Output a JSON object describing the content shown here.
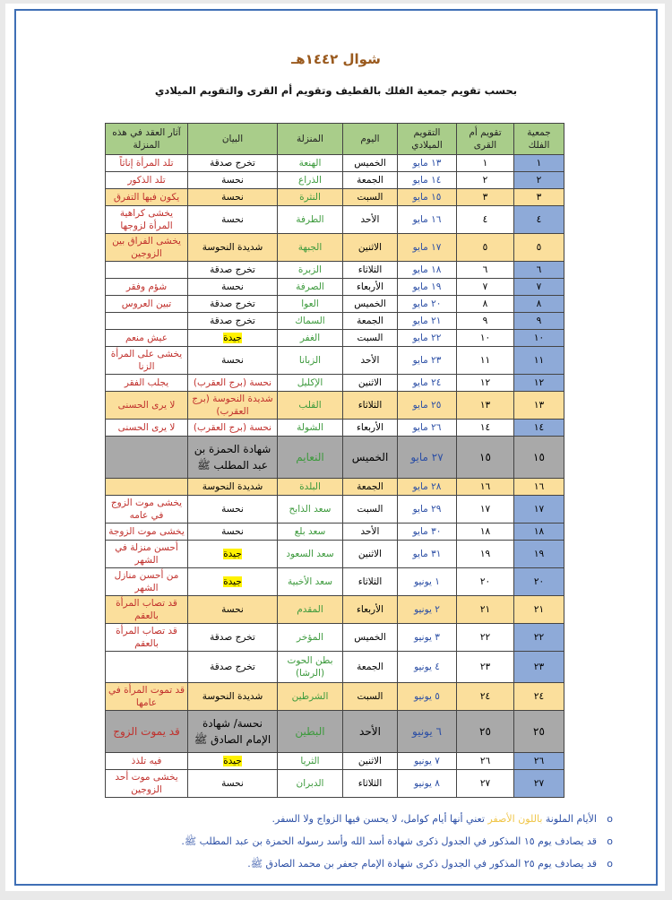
{
  "title": "شوال ١٤٤٢هـ",
  "subtitle": "بحسب تقويم جمعية الفلك بالقطيف وتقويم أم القرى والتقويم الميلادي",
  "headers": {
    "falak": "جمعية الفلك",
    "umm": "تقويم أم القرى",
    "date": "التقويم الميلادي",
    "day": "اليوم",
    "manzila": "المنزلة",
    "bayan": "البيان",
    "effect": "آثار العقد في هذه المنزلة"
  },
  "colors": {
    "header": "#a9cd8a",
    "falak_blue": "#8eaad8",
    "yellow_row": "#fbdf9c",
    "gray_row": "#a9a9a9",
    "effect_text": "#c0302c",
    "manzila_text": "#3d9a3d",
    "date_text": "#2c4fa5"
  },
  "rows": [
    {
      "falak": "١",
      "umm": "١",
      "date": "١٣ مايو",
      "day": "الخميس",
      "manzila": "الهنعة",
      "bayan": "تخرج صدقة",
      "effect": "تلد المرأة إناثاً",
      "bg": "white"
    },
    {
      "falak": "٢",
      "umm": "٢",
      "date": "١٤ مايو",
      "day": "الجمعة",
      "manzila": "الذراع",
      "bayan": "نحسة",
      "effect": "تلد الذكور",
      "bg": "white"
    },
    {
      "falak": "٣",
      "umm": "٣",
      "date": "١٥ مايو",
      "day": "السبت",
      "manzila": "النثرة",
      "bayan": "نحسة",
      "effect": "يكون فيها التفرق",
      "bg": "yellow"
    },
    {
      "falak": "٤",
      "umm": "٤",
      "date": "١٦ مايو",
      "day": "الأحد",
      "manzila": "الطرفة",
      "bayan": "نحسة",
      "effect": "يخشى كراهية المرأة لزوجها",
      "bg": "white"
    },
    {
      "falak": "٥",
      "umm": "٥",
      "date": "١٧ مايو",
      "day": "الاثنين",
      "manzila": "الجبهة",
      "bayan": "شديدة النحوسة",
      "effect": "يخشى الفراق بين الزوجين",
      "bg": "yellow"
    },
    {
      "falak": "٦",
      "umm": "٦",
      "date": "١٨ مايو",
      "day": "الثلاثاء",
      "manzila": "الزبرة",
      "bayan": "تخرج صدقة",
      "effect": "",
      "bg": "white"
    },
    {
      "falak": "٧",
      "umm": "٧",
      "date": "١٩ مايو",
      "day": "الأربعاء",
      "manzila": "الصرفة",
      "bayan": "نحسة",
      "effect": "شؤم وفقر",
      "bg": "white"
    },
    {
      "falak": "٨",
      "umm": "٨",
      "date": "٢٠ مايو",
      "day": "الخميس",
      "manzila": "العوا",
      "bayan": "تخرج صدقة",
      "effect": "تبين العروس",
      "bg": "white"
    },
    {
      "falak": "٩",
      "umm": "٩",
      "date": "٢١ مايو",
      "day": "الجمعة",
      "manzila": "السماك",
      "bayan": "تخرج صدقة",
      "effect": "",
      "bg": "white"
    },
    {
      "falak": "١٠",
      "umm": "١٠",
      "date": "٢٢ مايو",
      "day": "السبت",
      "manzila": "الغفر",
      "bayan": "جيدة",
      "effect": "عيش منعم",
      "bg": "white",
      "style": "good"
    },
    {
      "falak": "١١",
      "umm": "١١",
      "date": "٢٣ مايو",
      "day": "الأحد",
      "manzila": "الزبانا",
      "bayan": "نحسة",
      "effect": "يخشى على المرأة الزنا",
      "bg": "white"
    },
    {
      "falak": "١٢",
      "umm": "١٢",
      "date": "٢٤ مايو",
      "day": "الاثنين",
      "manzila": "الإكليل",
      "bayan": "نحسة (برج العقرب)",
      "effect": "يجلب الفقر",
      "bg": "white",
      "style": "red"
    },
    {
      "falak": "١٣",
      "umm": "١٣",
      "date": "٢٥ مايو",
      "day": "الثلاثاء",
      "manzila": "القلب",
      "bayan": "شديدة النحوسة (برج العقرب)",
      "effect": "لا يرى الحسنى",
      "bg": "yellow",
      "style": "red",
      "h": "t2"
    },
    {
      "falak": "١٤",
      "umm": "١٤",
      "date": "٢٦ مايو",
      "day": "الأربعاء",
      "manzila": "الشولة",
      "bayan": "نحسة (برج العقرب)",
      "effect": "لا يرى الحسنى",
      "bg": "white",
      "style": "red"
    },
    {
      "falak": "١٥",
      "umm": "١٥",
      "date": "٢٧ مايو",
      "day": "الخميس",
      "manzila": "النعايم",
      "bayan": "شهادة الحمزة بن عبد المطلب ﷺ",
      "effect": "",
      "bg": "gray",
      "h": "t3"
    },
    {
      "falak": "١٦",
      "umm": "١٦",
      "date": "٢٨ مايو",
      "day": "الجمعة",
      "manzila": "البلدة",
      "bayan": "شديدة النحوسة",
      "effect": "",
      "bg": "yellow"
    },
    {
      "falak": "١٧",
      "umm": "١٧",
      "date": "٢٩ مايو",
      "day": "السبت",
      "manzila": "سعد الذابح",
      "bayan": "نحسة",
      "effect": "يخشى موت الزوج في عامه",
      "bg": "white"
    },
    {
      "falak": "١٨",
      "umm": "١٨",
      "date": "٣٠ مايو",
      "day": "الأحد",
      "manzila": "سعد بلع",
      "bayan": "نحسة",
      "effect": "يخشى موت الزوجة",
      "bg": "white"
    },
    {
      "falak": "١٩",
      "umm": "١٩",
      "date": "٣١ مايو",
      "day": "الاثنين",
      "manzila": "سعد السعود",
      "bayan": "جيدة",
      "effect": "أحسن منزلة في الشهر",
      "bg": "white",
      "style": "good"
    },
    {
      "falak": "٢٠",
      "umm": "٢٠",
      "date": "١ يونيو",
      "day": "الثلاثاء",
      "manzila": "سعد الأخبية",
      "bayan": "جيدة",
      "effect": "من أحسن منازل الشهر",
      "bg": "white",
      "style": "good"
    },
    {
      "falak": "٢١",
      "umm": "٢١",
      "date": "٢ يونيو",
      "day": "الأربعاء",
      "manzila": "المقدم",
      "bayan": "نحسة",
      "effect": "قد تصاب المرأة بالعقم",
      "bg": "yellow"
    },
    {
      "falak": "٢٢",
      "umm": "٢٢",
      "date": "٣ يونيو",
      "day": "الخميس",
      "manzila": "المؤخر",
      "bayan": "تخرج صدقة",
      "effect": "قد تصاب المرأة بالعقم",
      "bg": "white"
    },
    {
      "falak": "٢٣",
      "umm": "٢٣",
      "date": "٤ يونيو",
      "day": "الجمعة",
      "manzila": "بطن الحوت (الرشا)",
      "bayan": "تخرج صدقة",
      "effect": "",
      "bg": "white",
      "h": "t4"
    },
    {
      "falak": "٢٤",
      "umm": "٢٤",
      "date": "٥ يونيو",
      "day": "السبت",
      "manzila": "الشرطين",
      "bayan": "شديدة النحوسة",
      "effect": "قد تموت المرأة في عامها",
      "bg": "yellow"
    },
    {
      "falak": "٢٥",
      "umm": "٢٥",
      "date": "٦ يونيو",
      "day": "الأحد",
      "manzila": "البطين",
      "bayan": "نحسة/ شهادة الإمام الصادق ﷺ",
      "effect": "قد يموت الزوج",
      "bg": "gray",
      "h": "t3"
    },
    {
      "falak": "٢٦",
      "umm": "٢٦",
      "date": "٧ يونيو",
      "day": "الاثنين",
      "manzila": "الثريا",
      "bayan": "جيدة",
      "effect": "فيه تلذذ",
      "bg": "white",
      "style": "good"
    },
    {
      "falak": "٢٧",
      "umm": "٢٧",
      "date": "٨ يونيو",
      "day": "الثلاثاء",
      "manzila": "الدبران",
      "bayan": "نحسة",
      "effect": "يخشى موت أحد الزوجين",
      "bg": "white"
    }
  ],
  "notes": {
    "n1_a": "الأيام الملونة",
    "n1_b": "باللون الأصفر",
    "n1_c": "تعني أنها أيام كوامل، لا يحسن فيها الزواج ولا السفر.",
    "n2": "قد يصادف يوم ١٥ المذكور في الجدول ذكرى شهادة أسد الله وأسد رسوله الحمزة بن عبد المطلب ﷺ.",
    "n3": "قد يصادف يوم ٢٥ المذكور في الجدول ذكرى شهادة الإمام جعفر بن محمد الصادق ﷺ."
  }
}
